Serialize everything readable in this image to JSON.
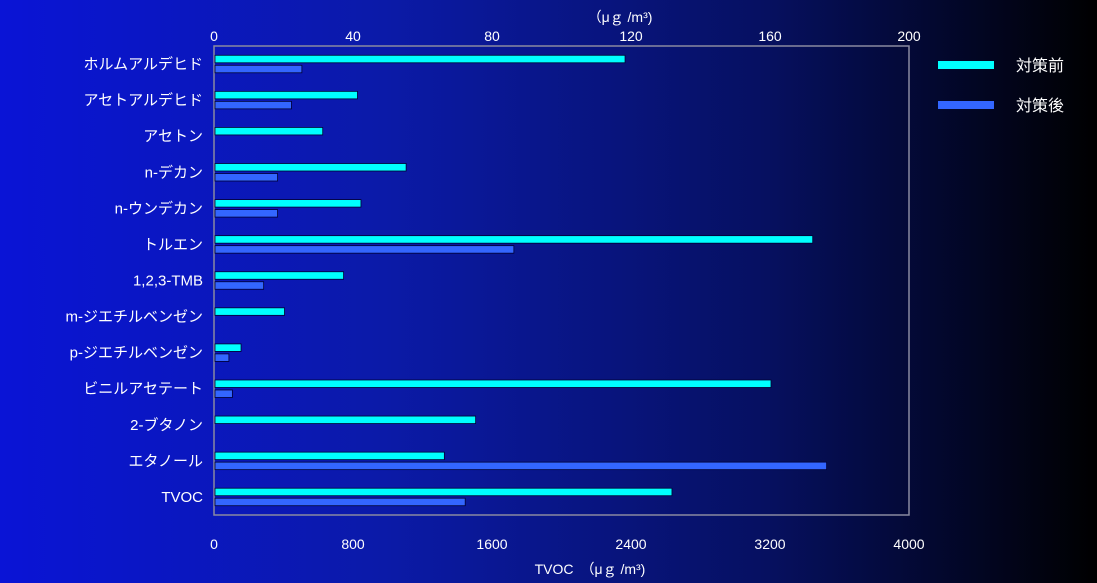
{
  "chart_data": {
    "type": "bar",
    "orientation": "horizontal",
    "categories": [
      "ホルムアルデヒド",
      "アセトアルデヒド",
      "アセトン",
      "n-デカン",
      "n-ウンデカン",
      "トルエン",
      "1,2,3-TMB",
      "m-ジエチルベンゼン",
      "p-ジエチルベンゼン",
      "ビニルアセテート",
      "2-ブタノン",
      "エタノール",
      "TVOC"
    ],
    "series": [
      {
        "name": "対策前",
        "color": "#00ffff",
        "values": [
          118,
          41,
          31,
          55,
          42,
          172,
          37,
          20,
          7.5,
          160,
          75,
          66,
          2630
        ]
      },
      {
        "name": "対策後",
        "color": "#3366ff",
        "values": [
          25,
          22,
          0,
          18,
          18,
          86,
          14,
          0,
          4,
          5,
          0,
          176,
          1440
        ]
      }
    ],
    "top_axis": {
      "ticks": [
        "0",
        "40",
        "80",
        "120",
        "160",
        "200"
      ],
      "range": [
        0,
        200
      ],
      "unit_label": "（μｇ /m³)"
    },
    "bottom_axis": {
      "ticks": [
        "0",
        "800",
        "1600",
        "2400",
        "3200",
        "4000"
      ],
      "range": [
        0,
        4000
      ],
      "label": "TVOC　（μｇ /m³)",
      "applies_to": "TVOC"
    },
    "legend_placement": "top-right",
    "grid": false
  }
}
